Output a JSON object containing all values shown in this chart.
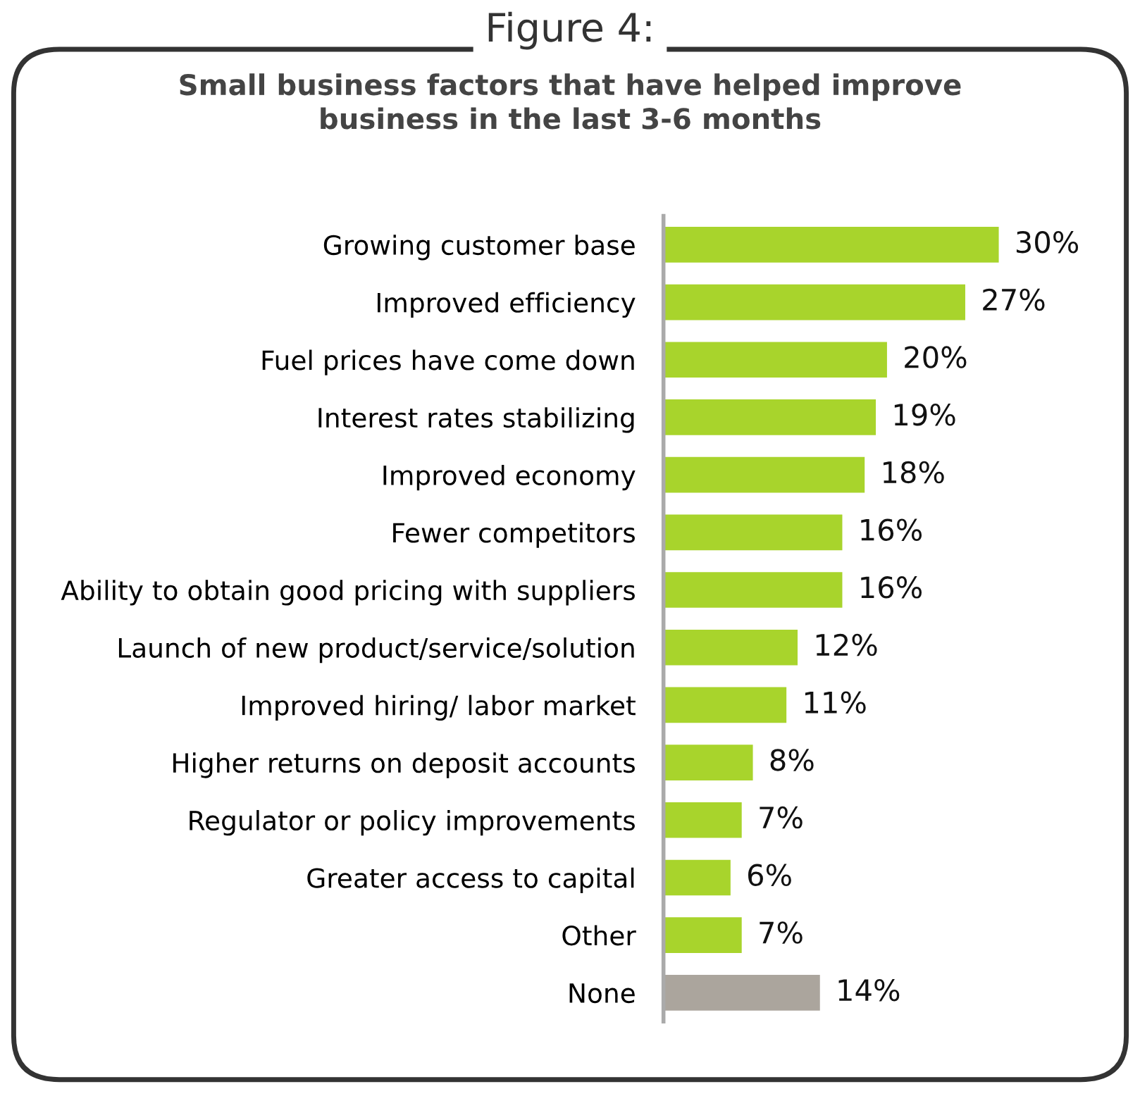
{
  "chart_data": {
    "type": "bar",
    "orientation": "horizontal",
    "title": "Figure 4:",
    "subtitle": "Small business factors that have helped improve\nbusiness in the last 3-6 months",
    "categories": [
      "Growing customer base",
      "Improved efficiency",
      "Fuel prices have come down",
      "Interest rates stabilizing",
      "Improved economy",
      "Fewer competitors",
      "Ability to obtain good pricing with suppliers",
      "Launch of new product/service/solution",
      "Improved hiring/ labor market",
      "Higher returns on deposit accounts",
      "Regulator or policy improvements",
      "Greater access to capital",
      "Other",
      "None"
    ],
    "values": [
      30,
      27,
      20,
      19,
      18,
      16,
      16,
      12,
      11,
      8,
      7,
      6,
      7,
      14
    ],
    "value_labels": [
      "30%",
      "27%",
      "20%",
      "19%",
      "18%",
      "16%",
      "16%",
      "12%",
      "11%",
      "8%",
      "7%",
      "6%",
      "7%",
      "14%"
    ],
    "colors": [
      "#a8d42c",
      "#a8d42c",
      "#a8d42c",
      "#a8d42c",
      "#a8d42c",
      "#a8d42c",
      "#a8d42c",
      "#a8d42c",
      "#a8d42c",
      "#a8d42c",
      "#a8d42c",
      "#a8d42c",
      "#a8d42c",
      "#aba59d"
    ],
    "tick_labels": "y",
    "grid": false,
    "legend": false
  }
}
